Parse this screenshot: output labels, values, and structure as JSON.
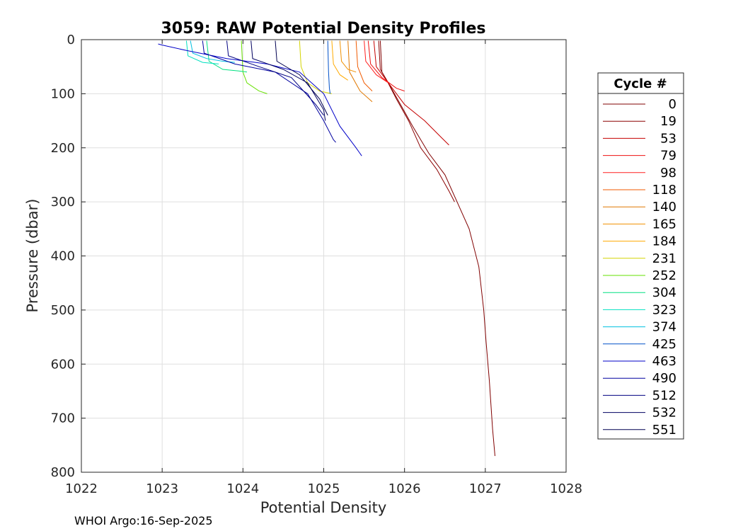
{
  "chart_data": {
    "type": "line",
    "title": "3059: RAW Potential Density Profiles",
    "xlabel": "Potential Density",
    "ylabel": "Pressure (dbar)",
    "xlim": [
      1022,
      1028
    ],
    "ylim": [
      800,
      0
    ],
    "y_reversed": true,
    "grid": true,
    "xticks": [
      1022,
      1023,
      1024,
      1025,
      1026,
      1027,
      1028
    ],
    "yticks": [
      0,
      100,
      200,
      300,
      400,
      500,
      600,
      700,
      800
    ],
    "legend_title": "Cycle #",
    "legend_position": "right-outside",
    "series": [
      {
        "name": "0",
        "color": "#800000",
        "x": [
          1025.7,
          1025.72,
          1025.8,
          1025.95,
          1026.1,
          1026.3,
          1026.5,
          1026.65,
          1026.8,
          1026.92,
          1026.98,
          1027.01,
          1027.05,
          1027.09,
          1027.12
        ],
        "y": [
          2,
          60,
          80,
          120,
          160,
          210,
          250,
          300,
          350,
          420,
          500,
          560,
          630,
          720,
          770
        ]
      },
      {
        "name": "19",
        "color": "#8b0000",
        "x": [
          1025.68,
          1025.7,
          1025.78,
          1025.9,
          1026.05,
          1026.2,
          1026.4,
          1026.55,
          1026.62
        ],
        "y": [
          2,
          55,
          75,
          110,
          150,
          200,
          240,
          280,
          300
        ]
      },
      {
        "name": "53",
        "color": "#c40000",
        "x": [
          1025.62,
          1025.65,
          1025.8,
          1026.0,
          1026.25,
          1026.45,
          1026.55
        ],
        "y": [
          2,
          50,
          80,
          120,
          150,
          180,
          195
        ]
      },
      {
        "name": "79",
        "color": "#ee1010",
        "x": [
          1025.55,
          1025.58,
          1025.72,
          1025.9,
          1026.0
        ],
        "y": [
          2,
          45,
          70,
          90,
          95
        ]
      },
      {
        "name": "98",
        "color": "#ff2020",
        "x": [
          1025.5,
          1025.52,
          1025.65,
          1025.8
        ],
        "y": [
          2,
          40,
          65,
          80
        ]
      },
      {
        "name": "118",
        "color": "#f05a00",
        "x": [
          1025.4,
          1025.42,
          1025.5,
          1025.6
        ],
        "y": [
          2,
          50,
          80,
          95
        ]
      },
      {
        "name": "140",
        "color": "#e07800",
        "x": [
          1025.3,
          1025.32,
          1025.45,
          1025.6
        ],
        "y": [
          2,
          60,
          95,
          115
        ]
      },
      {
        "name": "165",
        "color": "#f09000",
        "x": [
          1025.2,
          1025.22,
          1025.3,
          1025.4
        ],
        "y": [
          2,
          40,
          55,
          60
        ]
      },
      {
        "name": "184",
        "color": "#ffaa00",
        "x": [
          1025.1,
          1025.12,
          1025.2,
          1025.3
        ],
        "y": [
          2,
          45,
          65,
          75
        ]
      },
      {
        "name": "231",
        "color": "#d4d400",
        "x": [
          1024.7,
          1024.72,
          1024.8,
          1024.95,
          1025.1
        ],
        "y": [
          2,
          50,
          80,
          95,
          100
        ]
      },
      {
        "name": "252",
        "color": "#66e000",
        "x": [
          1023.98,
          1024.0,
          1024.05,
          1024.2,
          1024.3
        ],
        "y": [
          2,
          60,
          80,
          95,
          100
        ]
      },
      {
        "name": "304",
        "color": "#00e080",
        "x": [
          1023.55,
          1023.58,
          1023.75,
          1023.95,
          1024.05
        ],
        "y": [
          2,
          40,
          55,
          58,
          60
        ]
      },
      {
        "name": "323",
        "color": "#00e0c0",
        "x": [
          1023.3,
          1023.32,
          1023.5,
          1023.7
        ],
        "y": [
          2,
          30,
          42,
          45
        ]
      },
      {
        "name": "374",
        "color": "#00c0e0",
        "x": [
          1023.35,
          1023.38,
          1023.55,
          1023.75,
          1023.9
        ],
        "y": [
          2,
          25,
          35,
          40,
          42
        ]
      },
      {
        "name": "425",
        "color": "#0050c8",
        "x": [
          1025.05,
          1025.06,
          1025.07,
          1025.08
        ],
        "y": [
          2,
          60,
          90,
          100
        ]
      },
      {
        "name": "463",
        "color": "#0000c8",
        "x": [
          1022.95,
          1023.0,
          1023.3,
          1023.8,
          1024.3,
          1024.7,
          1025.0,
          1025.2,
          1025.4,
          1025.47
        ],
        "y": [
          8,
          10,
          20,
          35,
          45,
          60,
          100,
          160,
          200,
          215
        ]
      },
      {
        "name": "490",
        "color": "#0000a0",
        "x": [
          1023.5,
          1023.52,
          1023.9,
          1024.4,
          1024.8,
          1025.0,
          1025.12,
          1025.15
        ],
        "y": [
          2,
          25,
          45,
          60,
          100,
          150,
          185,
          190
        ]
      },
      {
        "name": "512",
        "color": "#000080",
        "x": [
          1023.8,
          1023.82,
          1024.2,
          1024.6,
          1024.9,
          1025.0
        ],
        "y": [
          2,
          30,
          50,
          70,
          120,
          140
        ]
      },
      {
        "name": "532",
        "color": "#000060",
        "x": [
          1024.1,
          1024.12,
          1024.5,
          1024.8,
          1025.0,
          1025.02
        ],
        "y": [
          2,
          35,
          55,
          80,
          130,
          150
        ]
      },
      {
        "name": "551",
        "color": "#000050",
        "x": [
          1024.4,
          1024.42,
          1024.7,
          1024.95,
          1025.05
        ],
        "y": [
          2,
          40,
          65,
          110,
          140
        ]
      }
    ]
  },
  "footer": "WHOI Argo:16-Sep-2025"
}
